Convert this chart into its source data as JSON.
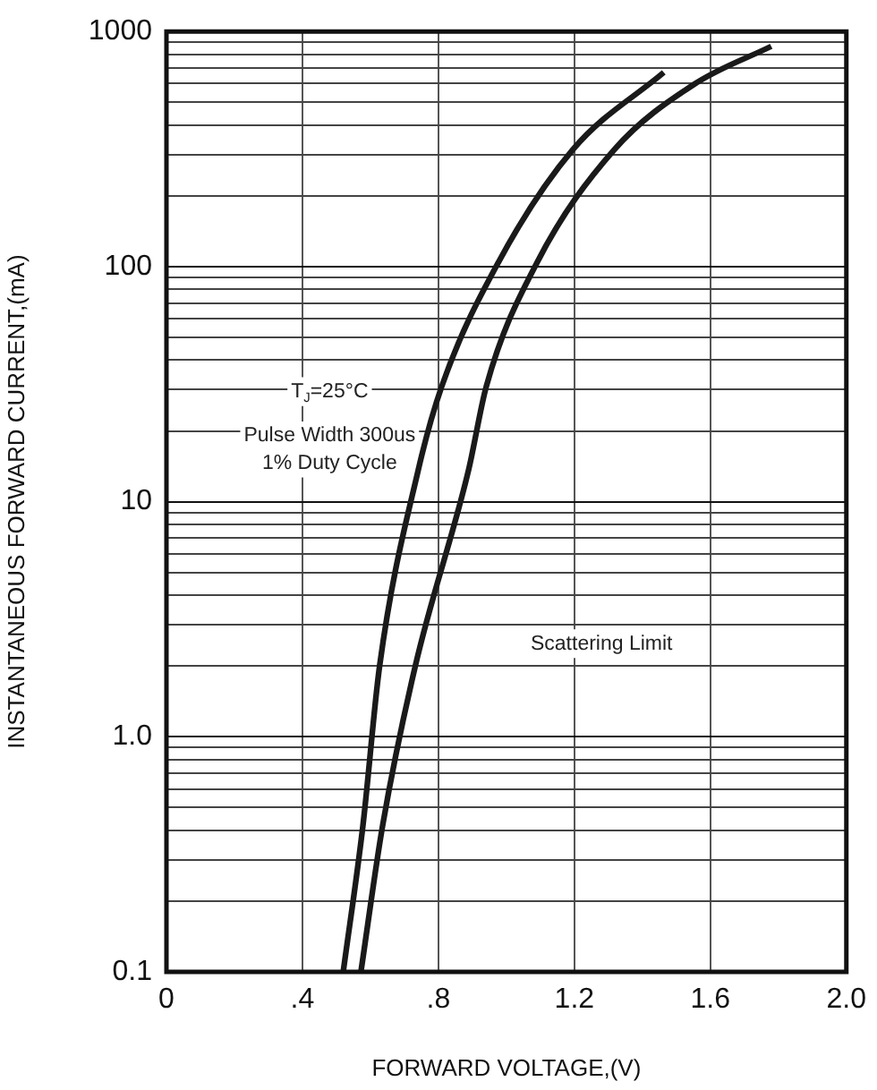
{
  "chart_data": {
    "type": "line",
    "xlabel": "FORWARD VOLTAGE,(V)",
    "ylabel": "INSTANTANEOUS FORWARD CURRENT,(mA)",
    "series": [
      {
        "color": "#1a1a1a",
        "x": [
          0.52,
          0.578,
          0.627,
          0.741,
          0.81,
          0.976,
          1.195,
          1.463
        ],
        "values": [
          0.1,
          0.42,
          2.0,
          13.7,
          31,
          104,
          314,
          670
        ]
      },
      {
        "color": "#1a1a1a",
        "x": [
          0.572,
          0.636,
          0.732,
          0.889,
          0.941,
          1.09,
          1.317,
          1.552,
          1.779
        ],
        "values": [
          0.1,
          0.42,
          2.0,
          13.7,
          31,
          104,
          314,
          596,
          865
        ]
      }
    ],
    "xlim": [
      0,
      2
    ],
    "xticks": [
      0,
      {
        "value": 0.4,
        "label": ".4"
      },
      {
        "value": 0.8,
        "label": ".8"
      },
      1.2,
      1.6,
      {
        "value": 2,
        "label": "2.0"
      }
    ],
    "ylim": [
      0.1,
      1000
    ],
    "log": true,
    "yticks": [
      0.1,
      {
        "value": 0.2,
        "label": null
      },
      {
        "value": 0.3,
        "label": null
      },
      {
        "value": 0.4,
        "label": null
      },
      {
        "value": 0.5,
        "label": null
      },
      {
        "value": 0.6,
        "label": null
      },
      {
        "value": 0.7,
        "label": null
      },
      {
        "value": 0.8,
        "label": null
      },
      {
        "value": 0.9,
        "label": null
      },
      {
        "value": 1,
        "label": "1.0"
      },
      {
        "value": 2,
        "label": null
      },
      {
        "value": 3,
        "label": null
      },
      {
        "value": 4,
        "label": null
      },
      {
        "value": 5,
        "label": null
      },
      {
        "value": 6,
        "label": null
      },
      {
        "value": 7,
        "label": null
      },
      {
        "value": 8,
        "label": null
      },
      {
        "value": 9,
        "label": null
      },
      10,
      {
        "value": 20,
        "label": null
      },
      {
        "value": 30,
        "label": null
      },
      {
        "value": 40,
        "label": null
      },
      {
        "value": 50,
        "label": null
      },
      {
        "value": 60,
        "label": null
      },
      {
        "value": 70,
        "label": null
      },
      {
        "value": 80,
        "label": null
      },
      {
        "value": 90,
        "label": null
      },
      100,
      {
        "value": 200,
        "label": null
      },
      {
        "value": 300,
        "label": null
      },
      {
        "value": 400,
        "label": null
      },
      {
        "value": 500,
        "label": null
      },
      {
        "value": 600,
        "label": null
      },
      {
        "value": 700,
        "label": null
      },
      {
        "value": 800,
        "label": null
      },
      {
        "value": 900,
        "label": null
      },
      1000
    ],
    "grid": true,
    "legend": false,
    "marker": "none",
    "line_style": "solid",
    "annotations": [
      "T$_{J}$=25°C",
      "Pulse Width 300us",
      "1% Duty Cycle",
      "Scattering Limit"
    ]
  }
}
